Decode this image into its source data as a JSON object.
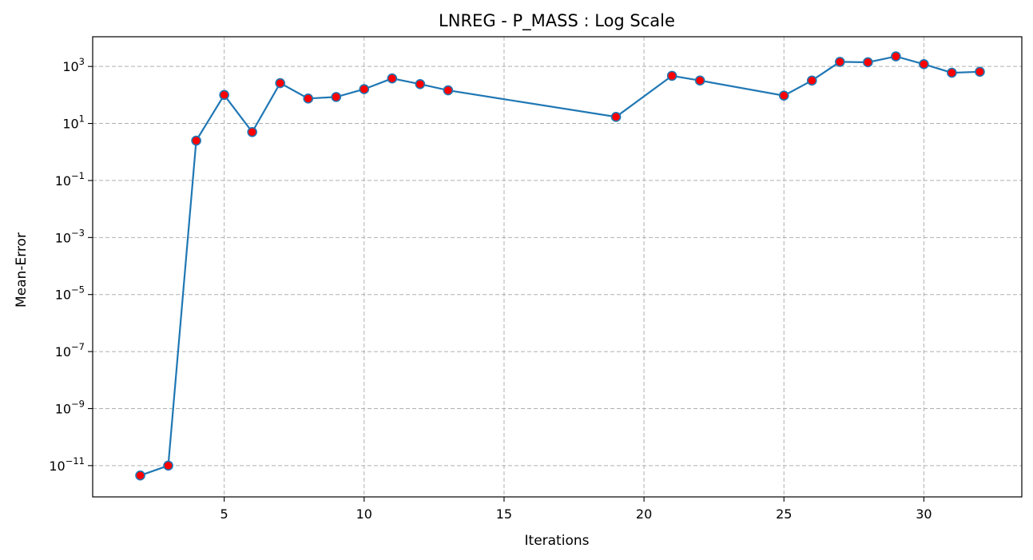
{
  "chart_data": {
    "type": "line",
    "title": "LNREG - P_MASS : Log Scale",
    "xlabel": "Iterations",
    "ylabel": "Mean-Error",
    "yscale": "log",
    "grid": true,
    "xlim": [
      0.3,
      33.5
    ],
    "ylim": [
      8e-13,
      11000
    ],
    "xticks": [
      5,
      10,
      15,
      20,
      25,
      30
    ],
    "xtick_labels": [
      "5",
      "10",
      "15",
      "20",
      "25",
      "30"
    ],
    "yticks": [
      1e-11,
      1e-09,
      1e-07,
      1e-05,
      0.001,
      0.1,
      10,
      1000
    ],
    "ytick_labels": [
      {
        "base": "10",
        "exp": "−11"
      },
      {
        "base": "10",
        "exp": "−9"
      },
      {
        "base": "10",
        "exp": "−7"
      },
      {
        "base": "10",
        "exp": "−5"
      },
      {
        "base": "10",
        "exp": "−3"
      },
      {
        "base": "10",
        "exp": "−1"
      },
      {
        "base": "10",
        "exp": "1"
      },
      {
        "base": "10",
        "exp": "3"
      }
    ],
    "line_color": "#1f77b4",
    "marker_fill": "#ff0000",
    "marker_edge": "#1f77b4",
    "series": [
      {
        "x": [
          2,
          3,
          4,
          5,
          6,
          7,
          8,
          9,
          10,
          11,
          12,
          13,
          19,
          21,
          22,
          25,
          26,
          27,
          28,
          29,
          30,
          31,
          32
        ],
        "y": [
          4.5e-12,
          1e-11,
          2.5,
          100,
          5,
          260,
          75,
          85,
          160,
          380,
          240,
          145,
          17,
          470,
          320,
          95,
          320,
          1450,
          1400,
          2250,
          1200,
          600,
          650
        ]
      }
    ]
  }
}
